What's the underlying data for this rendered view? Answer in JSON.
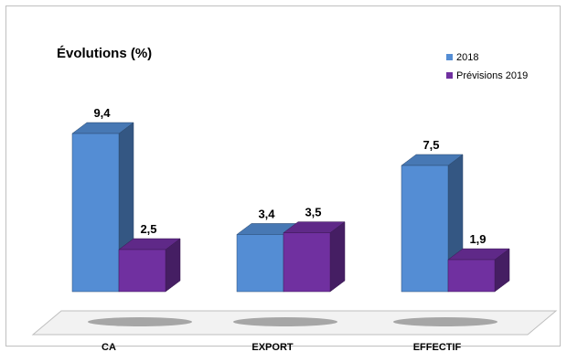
{
  "chart_data": {
    "type": "bar",
    "title": "Évolutions (%)",
    "categories": [
      "CA",
      "EXPORT",
      "EFFECTIF"
    ],
    "series": [
      {
        "name": "2018",
        "values": [
          9.4,
          3.4,
          7.5
        ],
        "labels": [
          "9,4",
          "3,4",
          "7,5"
        ],
        "color": "#548DD4"
      },
      {
        "name": "Prévisions 2019",
        "values": [
          2.5,
          3.5,
          1.9
        ],
        "labels": [
          "2,5",
          "3,5",
          "1,9"
        ],
        "color": "#7030A0"
      }
    ],
    "ylim": [
      0,
      10
    ],
    "grid": false,
    "legend": "top-right",
    "style": "3d-column"
  }
}
